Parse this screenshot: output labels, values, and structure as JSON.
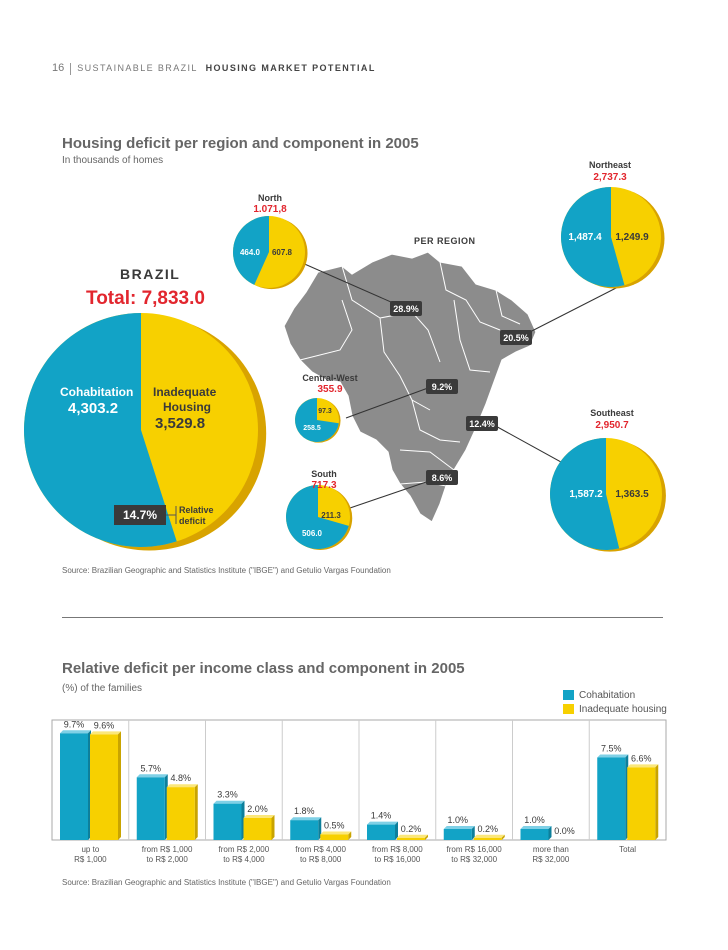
{
  "header": {
    "page_number": "16",
    "section": "SUSTAINABLE BRAZIL",
    "subsection": "HOUSING MARKET POTENTIAL"
  },
  "colors": {
    "cohabitation": "#12a3c6",
    "inadequate": "#f7d000",
    "red": "#e2262e",
    "gray_map": "#8c8c8c",
    "dark_label": "#3a3a3a"
  },
  "chart_data": [
    {
      "type": "pie",
      "title": "Housing deficit per region and component in 2005",
      "subtitle": "In thousands of homes",
      "per_region_label": "PER REGION",
      "source": "Source: Brazilian Geographic and Statistics Institute (\"IBGE\") and Getulio Vargas Foundation",
      "brazil": {
        "label": "BRAZIL",
        "total_label": "Total: 7,833.0",
        "cohabitation_label": "Cohabitation",
        "cohabitation_value": "4,303.2",
        "inadequate_label_1": "Inadequate",
        "inadequate_label_2": "Housing",
        "inadequate_value": "3,529.8",
        "relative_deficit": "14.7%",
        "relative_label_1": "Relative",
        "relative_label_2": "deficit",
        "values": [
          4303.2,
          3529.8
        ]
      },
      "regions": [
        {
          "name": "North",
          "total": "1.071,8",
          "cohabitation": "464.0",
          "inadequate": "607.8",
          "values": [
            464.0,
            607.8
          ],
          "share": "28.9%"
        },
        {
          "name": "Northeast",
          "total": "2,737.3",
          "cohabitation": "1,487.4",
          "inadequate": "1,249.9",
          "values": [
            1487.4,
            1249.9
          ],
          "share": "20.5%"
        },
        {
          "name": "Central-West",
          "total": "355.9",
          "cohabitation": "258.5",
          "inadequate": "97.3",
          "values": [
            258.5,
            97.3
          ],
          "share": "9.2%"
        },
        {
          "name": "Southeast",
          "total": "2,950.7",
          "cohabitation": "1,587.2",
          "inadequate": "1,363.5",
          "values": [
            1587.2,
            1363.5
          ],
          "share": "12.4%"
        },
        {
          "name": "South",
          "total": "717.3",
          "cohabitation": "506.0",
          "inadequate": "211.3",
          "values": [
            506.0,
            211.3
          ],
          "share": "8.6%"
        }
      ]
    },
    {
      "type": "bar",
      "title": "Relative deficit per income class and component in 2005",
      "subtitle": "(%) of the families",
      "source": "Source: Brazilian Geographic and Statistics Institute (\"IBGE\") and Getulio Vargas Foundation",
      "categories": [
        [
          "up to",
          "R$ 1,000"
        ],
        [
          "from R$ 1,000",
          "to R$ 2,000"
        ],
        [
          "from R$ 2,000",
          "to R$ 4,000"
        ],
        [
          "from R$ 4,000",
          "to R$ 8,000"
        ],
        [
          "from R$ 8,000",
          "to R$ 16,000"
        ],
        [
          "from R$ 16,000",
          "to R$ 32,000"
        ],
        [
          "more than",
          "R$ 32,000"
        ],
        [
          "Total",
          ""
        ]
      ],
      "series": [
        {
          "name": "Cohabitation",
          "values": [
            9.7,
            5.7,
            3.3,
            1.8,
            1.4,
            1.0,
            1.0,
            7.5
          ],
          "labels": [
            "9.7%",
            "5.7%",
            "3.3%",
            "1.8%",
            "1.4%",
            "1.0%",
            "1.0%",
            "7.5%"
          ]
        },
        {
          "name": "Inadequate housing",
          "values": [
            9.6,
            4.8,
            2.0,
            0.5,
            0.2,
            0.2,
            0.0,
            6.6
          ],
          "labels": [
            "9.6%",
            "4.8%",
            "2.0%",
            "0.5%",
            "0.2%",
            "0.2%",
            "0.0%",
            "6.6%"
          ]
        }
      ],
      "ylim": [
        0,
        10
      ]
    }
  ]
}
